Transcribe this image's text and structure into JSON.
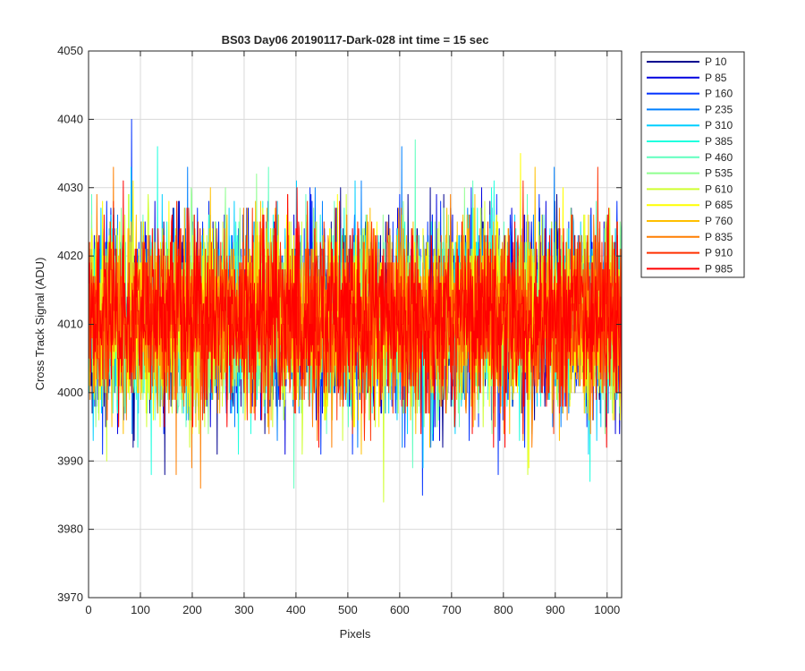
{
  "chart_data": {
    "type": "line",
    "title": "BS03 Day06 20190117-Dark-028 int time = 15 sec",
    "xlabel": "Pixels",
    "ylabel": "Cross Track Signal (ADU)",
    "xlim": [
      0,
      1028
    ],
    "ylim": [
      3970,
      4050
    ],
    "x_ticks": [
      0,
      100,
      200,
      300,
      400,
      500,
      600,
      700,
      800,
      900,
      1000
    ],
    "y_ticks": [
      3970,
      3980,
      3990,
      4000,
      4010,
      4020,
      4030,
      4040,
      4050
    ],
    "grid": true,
    "legend_position": "outside-top-right",
    "x": {
      "start": 1,
      "end": 1028,
      "step": 1
    },
    "series_note_values": "noise around mean",
    "series": [
      {
        "name": "P 10",
        "color": "#00008f",
        "mean": 4011,
        "std": 6.5
      },
      {
        "name": "P 85",
        "color": "#0000df",
        "mean": 4011,
        "std": 6.5
      },
      {
        "name": "P 160",
        "color": "#0030ff",
        "mean": 4011,
        "std": 6.5
      },
      {
        "name": "P 235",
        "color": "#0080ff",
        "mean": 4011,
        "std": 6.5
      },
      {
        "name": "P 310",
        "color": "#00cfff",
        "mean": 4011,
        "std": 6.5
      },
      {
        "name": "P 385",
        "color": "#20ffdf",
        "mean": 4011,
        "std": 6.5
      },
      {
        "name": "P 460",
        "color": "#60ffbf",
        "mean": 4011,
        "std": 6.5
      },
      {
        "name": "P 535",
        "color": "#8fff8f",
        "mean": 4011,
        "std": 6.5
      },
      {
        "name": "P 610",
        "color": "#cfff30",
        "mean": 4011,
        "std": 6.5
      },
      {
        "name": "P 685",
        "color": "#ffff00",
        "mean": 4011,
        "std": 6.5
      },
      {
        "name": "P 760",
        "color": "#ffbf00",
        "mean": 4011,
        "std": 6.5
      },
      {
        "name": "P 835",
        "color": "#ff7f00",
        "mean": 4011,
        "std": 6.5
      },
      {
        "name": "P 910",
        "color": "#ff3000",
        "mean": 4011,
        "std": 6.5
      },
      {
        "name": "P 985",
        "color": "#ff0000",
        "mean": 4011,
        "std": 6.5
      }
    ]
  }
}
